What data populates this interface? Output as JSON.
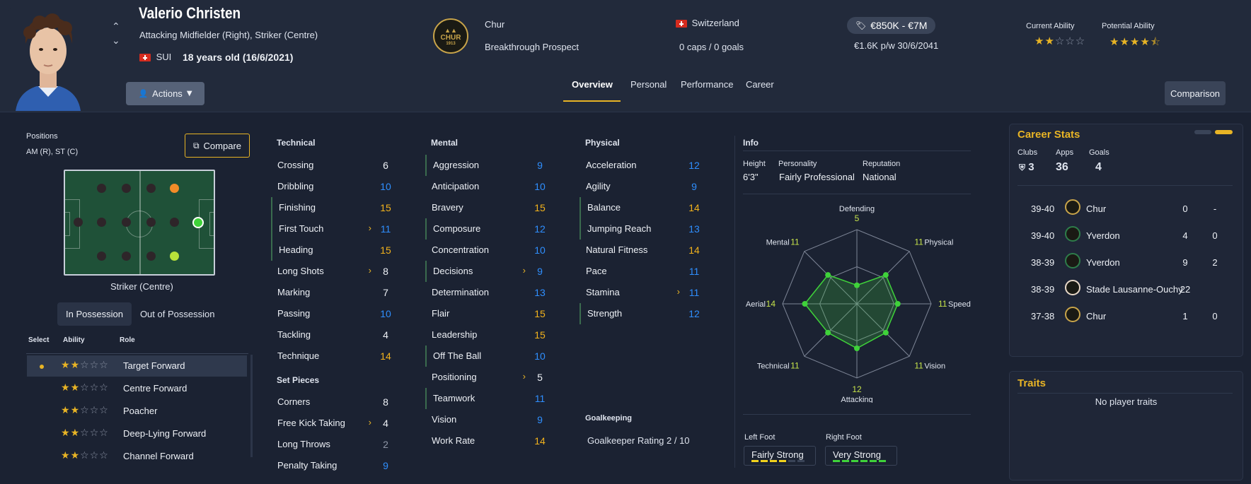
{
  "player": {
    "name": "Valerio Christen",
    "positions_long": "Attacking Midfielder (Right), Striker (Centre)",
    "nation_code": "SUI",
    "age": "18 years old (16/6/2021)"
  },
  "header": {
    "actions_label": "Actions",
    "club": "Chur",
    "club_logo_text": "CHUR",
    "club_logo_year": "1913",
    "status": "Breakthrough Prospect",
    "nation": "Switzerland",
    "caps": "0 caps / 0 goals",
    "value": "€850K - €7M",
    "contract": "€1.6K p/w 30/6/2041",
    "ca_label": "Current Ability",
    "pa_label": "Potential Ability",
    "ca_stars": 2,
    "pa_stars": 4.5,
    "tabs": [
      "Overview",
      "Personal",
      "Performance",
      "Career"
    ],
    "comparison_label": "Comparison"
  },
  "positions": {
    "label": "Positions",
    "short": "AM (R), ST (C)",
    "compare_label": "Compare",
    "selected_position": "Striker (Centre)",
    "possession_tabs": [
      "In Possession",
      "Out of Possession"
    ]
  },
  "roles": {
    "headers": [
      "Select",
      "Ability",
      "Role"
    ],
    "items": [
      {
        "name": "Target Forward",
        "stars": 2,
        "selected": true
      },
      {
        "name": "Centre Forward",
        "stars": 2,
        "selected": false
      },
      {
        "name": "Poacher",
        "stars": 2,
        "selected": false
      },
      {
        "name": "Deep-Lying Forward",
        "stars": 2,
        "selected": false
      },
      {
        "name": "Channel Forward",
        "stars": 2,
        "selected": false
      }
    ]
  },
  "attributes": {
    "technical_title": "Technical",
    "technical": [
      {
        "name": "Crossing",
        "value": "6",
        "color": "#eef1f6"
      },
      {
        "name": "Dribbling",
        "value": "10",
        "color": "#2f8fff"
      },
      {
        "name": "Finishing",
        "value": "15",
        "color": "#f2b21c",
        "key": true
      },
      {
        "name": "First Touch",
        "value": "11",
        "color": "#2f8fff",
        "key": true,
        "arrow": true
      },
      {
        "name": "Heading",
        "value": "15",
        "color": "#f2b21c",
        "key": true
      },
      {
        "name": "Long Shots",
        "value": "8",
        "color": "#eef1f6",
        "arrow": true
      },
      {
        "name": "Marking",
        "value": "7",
        "color": "#eef1f6"
      },
      {
        "name": "Passing",
        "value": "10",
        "color": "#2f8fff"
      },
      {
        "name": "Tackling",
        "value": "4",
        "color": "#eef1f6"
      },
      {
        "name": "Technique",
        "value": "14",
        "color": "#f2b21c"
      }
    ],
    "setpieces_title": "Set Pieces",
    "setpieces": [
      {
        "name": "Corners",
        "value": "8",
        "color": "#eef1f6"
      },
      {
        "name": "Free Kick Taking",
        "value": "4",
        "color": "#eef1f6",
        "arrow": true
      },
      {
        "name": "Long Throws",
        "value": "2",
        "color": "#8e96a6"
      },
      {
        "name": "Penalty Taking",
        "value": "9",
        "color": "#2f8fff"
      }
    ],
    "mental_title": "Mental",
    "mental": [
      {
        "name": "Aggression",
        "value": "9",
        "color": "#2f8fff",
        "key": true
      },
      {
        "name": "Anticipation",
        "value": "10",
        "color": "#2f8fff"
      },
      {
        "name": "Bravery",
        "value": "15",
        "color": "#f2b21c"
      },
      {
        "name": "Composure",
        "value": "12",
        "color": "#2f8fff",
        "key": true
      },
      {
        "name": "Concentration",
        "value": "10",
        "color": "#2f8fff"
      },
      {
        "name": "Decisions",
        "value": "9",
        "color": "#2f8fff",
        "key": true,
        "arrow": true
      },
      {
        "name": "Determination",
        "value": "13",
        "color": "#2f8fff"
      },
      {
        "name": "Flair",
        "value": "15",
        "color": "#f2b21c"
      },
      {
        "name": "Leadership",
        "value": "15",
        "color": "#f2b21c"
      },
      {
        "name": "Off The Ball",
        "value": "10",
        "color": "#2f8fff",
        "key": true
      },
      {
        "name": "Positioning",
        "value": "5",
        "color": "#eef1f6",
        "arrow": true
      },
      {
        "name": "Teamwork",
        "value": "11",
        "color": "#2f8fff",
        "key": true
      },
      {
        "name": "Vision",
        "value": "9",
        "color": "#2f8fff"
      },
      {
        "name": "Work Rate",
        "value": "14",
        "color": "#f2b21c"
      }
    ],
    "physical_title": "Physical",
    "physical": [
      {
        "name": "Acceleration",
        "value": "12",
        "color": "#2f8fff"
      },
      {
        "name": "Agility",
        "value": "9",
        "color": "#2f8fff"
      },
      {
        "name": "Balance",
        "value": "14",
        "color": "#f2b21c",
        "key": true
      },
      {
        "name": "Jumping Reach",
        "value": "13",
        "color": "#2f8fff",
        "key": true
      },
      {
        "name": "Natural Fitness",
        "value": "14",
        "color": "#f2b21c"
      },
      {
        "name": "Pace",
        "value": "11",
        "color": "#2f8fff"
      },
      {
        "name": "Stamina",
        "value": "11",
        "color": "#2f8fff",
        "arrow": true
      },
      {
        "name": "Strength",
        "value": "12",
        "color": "#2f8fff",
        "key": true
      }
    ],
    "goalkeeping_title": "Goalkeeping",
    "gk_rating": "Goalkeeper Rating 2 / 10"
  },
  "info": {
    "title": "Info",
    "height_label": "Height",
    "height": "6'3\"",
    "personality_label": "Personality",
    "personality": "Fairly Professional",
    "reputation_label": "Reputation",
    "reputation": "National",
    "left_foot_label": "Left Foot",
    "left_foot": "Fairly Strong",
    "right_foot_label": "Right Foot",
    "right_foot": "Very Strong"
  },
  "radar": {
    "axes": [
      {
        "label": "Defending",
        "value": 5
      },
      {
        "label": "Physical",
        "value": 11
      },
      {
        "label": "Speed",
        "value": 11
      },
      {
        "label": "Vision",
        "value": 11
      },
      {
        "label": "Attacking",
        "value": 12
      },
      {
        "label": "Technical",
        "value": 11
      },
      {
        "label": "Aerial",
        "value": 14
      },
      {
        "label": "Mental",
        "value": 11
      }
    ]
  },
  "career": {
    "title": "Career Stats",
    "clubs_label": "Clubs",
    "clubs": "3",
    "apps_label": "Apps",
    "apps": "36",
    "goals_label": "Goals",
    "goals": "4",
    "rows": [
      {
        "season": "39-40",
        "club": "Chur",
        "apps": "0",
        "goals": "-"
      },
      {
        "season": "39-40",
        "club": "Yverdon",
        "apps": "4",
        "goals": "0"
      },
      {
        "season": "38-39",
        "club": "Yverdon",
        "apps": "9",
        "goals": "2"
      },
      {
        "season": "38-39",
        "club": "Stade Lausanne-Ouchy",
        "apps": "22",
        "goals": ""
      },
      {
        "season": "37-38",
        "club": "Chur",
        "apps": "1",
        "goals": "0"
      }
    ]
  },
  "traits": {
    "title": "Traits",
    "empty": "No player traits"
  }
}
